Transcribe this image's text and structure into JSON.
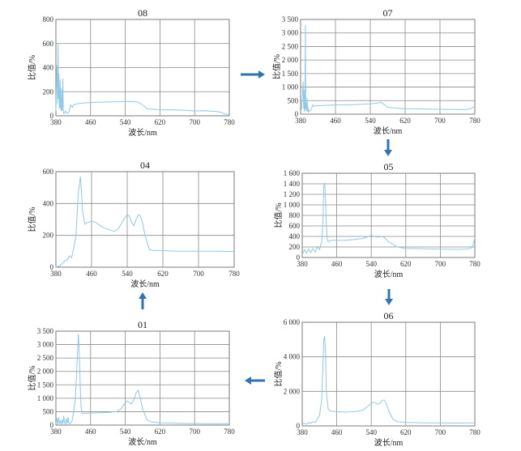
{
  "figure": {
    "xlabel": "波长/nm",
    "ylabel": "比值/%"
  },
  "chart_data": [
    {
      "id": "08",
      "type": "line",
      "title": "08",
      "xlabel": "波长/nm",
      "ylabel": "比值/%",
      "xlim": [
        380,
        780
      ],
      "ylim": [
        0,
        800
      ],
      "xticks": [
        380,
        460,
        540,
        620,
        700,
        780
      ],
      "xtick_labels": [
        "380",
        "460",
        "540",
        "620",
        "700",
        "780"
      ],
      "yticks": [
        0,
        200,
        400,
        600,
        800
      ],
      "ytick_labels": [
        "0",
        "200",
        "400",
        "600",
        "800"
      ],
      "grid": true,
      "series": [
        {
          "color": "#8fc9e8",
          "x": [
            380,
            382,
            384,
            385,
            386,
            387,
            388,
            389,
            390,
            391,
            392,
            393,
            394,
            395,
            396,
            397,
            398,
            400,
            402,
            404,
            406,
            408,
            410,
            412,
            414,
            416,
            418,
            420,
            430,
            440,
            460,
            500,
            540,
            560,
            570,
            580,
            590,
            600,
            620,
            650,
            680,
            700,
            720,
            740,
            750,
            760,
            770,
            780
          ],
          "y": [
            40,
            420,
            100,
            600,
            140,
            350,
            60,
            80,
            300,
            60,
            40,
            230,
            40,
            70,
            310,
            70,
            20,
            20,
            40,
            30,
            20,
            20,
            30,
            60,
            90,
            80,
            70,
            90,
            100,
            105,
            110,
            115,
            120,
            118,
            112,
            90,
            60,
            55,
            50,
            50,
            45,
            40,
            42,
            38,
            35,
            30,
            15,
            10
          ]
        }
      ]
    },
    {
      "id": "07",
      "type": "line",
      "title": "07",
      "xlabel": "波长/nm",
      "ylabel": "比值/%",
      "xlim": [
        380,
        780
      ],
      "ylim": [
        0,
        3500
      ],
      "xticks": [
        380,
        460,
        540,
        620,
        700,
        780
      ],
      "xtick_labels": [
        "380",
        "460",
        "540",
        "620",
        "700",
        "780"
      ],
      "yticks": [
        0,
        500,
        1000,
        1500,
        2000,
        2500,
        3000,
        3500
      ],
      "ytick_labels": [
        "0",
        "500",
        "1 000",
        "1 500",
        "2 000",
        "2 500",
        "3 000",
        "3 500"
      ],
      "grid": true,
      "series": [
        {
          "color": "#8fc9e8",
          "x": [
            380,
            382,
            384,
            386,
            387,
            388,
            389,
            390,
            391,
            392,
            393,
            394,
            395,
            396,
            397,
            398,
            400,
            402,
            404,
            406,
            408,
            410,
            412,
            414,
            416,
            420,
            430,
            440,
            460,
            500,
            540,
            560,
            565,
            570,
            580,
            600,
            620,
            660,
            700,
            740,
            760,
            770,
            780
          ],
          "y": [
            100,
            200,
            600,
            1200,
            200,
            900,
            100,
            150,
            3300,
            200,
            400,
            120,
            600,
            100,
            250,
            80,
            120,
            150,
            180,
            250,
            350,
            300,
            280,
            300,
            320,
            310,
            320,
            330,
            340,
            350,
            380,
            420,
            430,
            380,
            250,
            220,
            200,
            190,
            180,
            170,
            175,
            200,
            280
          ]
        }
      ]
    },
    {
      "id": "04",
      "type": "line",
      "title": "04",
      "xlabel": "波长/nm",
      "ylabel": "比值/%",
      "xlim": [
        380,
        780
      ],
      "ylim": [
        0,
        600
      ],
      "xticks": [
        380,
        460,
        540,
        620,
        700,
        780
      ],
      "xtick_labels": [
        "380",
        "460",
        "540",
        "620",
        "700",
        "780"
      ],
      "yticks": [
        0,
        200,
        400,
        600
      ],
      "ytick_labels": [
        "0",
        "200",
        "400",
        "600"
      ],
      "grid": true,
      "series": [
        {
          "color": "#8fc9e8",
          "x": [
            380,
            390,
            400,
            405,
            410,
            415,
            420,
            425,
            430,
            435,
            440,
            445,
            450,
            460,
            470,
            480,
            490,
            500,
            510,
            520,
            530,
            540,
            545,
            550,
            555,
            560,
            565,
            570,
            575,
            580,
            590,
            600,
            620,
            650,
            700,
            750,
            780
          ],
          "y": [
            0,
            10,
            40,
            45,
            70,
            60,
            120,
            200,
            460,
            570,
            350,
            270,
            280,
            290,
            280,
            260,
            245,
            235,
            225,
            240,
            290,
            330,
            320,
            280,
            260,
            300,
            330,
            320,
            270,
            200,
            110,
            105,
            105,
            100,
            100,
            100,
            98
          ]
        }
      ]
    },
    {
      "id": "05",
      "type": "line",
      "title": "05",
      "xlabel": "波长/nm",
      "ylabel": "比值/%",
      "xlim": [
        380,
        780
      ],
      "ylim": [
        0,
        1600
      ],
      "xticks": [
        380,
        460,
        540,
        620,
        700,
        780
      ],
      "xtick_labels": [
        "380",
        "460",
        "540",
        "620",
        "700",
        "780"
      ],
      "yticks": [
        0,
        200,
        400,
        600,
        800,
        1000,
        1200,
        1400,
        1600
      ],
      "ytick_labels": [
        "0",
        "200",
        "400",
        "600",
        "800",
        "1 000",
        "1 200",
        "1 400",
        "1 600"
      ],
      "grid": true,
      "series": [
        {
          "color": "#8fc9e8",
          "x": [
            380,
            385,
            390,
            395,
            400,
            405,
            410,
            415,
            420,
            425,
            428,
            430,
            432,
            434,
            436,
            438,
            440,
            445,
            450,
            460,
            480,
            500,
            520,
            540,
            550,
            560,
            565,
            570,
            580,
            600,
            620,
            660,
            700,
            740,
            760,
            770,
            775,
            780
          ],
          "y": [
            50,
            150,
            80,
            160,
            90,
            170,
            100,
            200,
            150,
            300,
            700,
            1350,
            1420,
            1100,
            600,
            350,
            300,
            320,
            330,
            325,
            330,
            340,
            360,
            420,
            390,
            390,
            400,
            380,
            300,
            200,
            170,
            165,
            160,
            155,
            160,
            170,
            200,
            380
          ]
        }
      ]
    },
    {
      "id": "01",
      "type": "line",
      "title": "01",
      "xlabel": "波长/nm",
      "ylabel": "比值/%",
      "xlim": [
        380,
        780
      ],
      "ylim": [
        0,
        3500
      ],
      "xticks": [
        380,
        460,
        540,
        620,
        700,
        780
      ],
      "xtick_labels": [
        "380",
        "460",
        "540",
        "620",
        "700",
        "780"
      ],
      "yticks": [
        0,
        500,
        1000,
        1500,
        2000,
        2500,
        3000,
        3500
      ],
      "ytick_labels": [
        "0",
        "500",
        "1 000",
        "1 500",
        "2 000",
        "2 500",
        "3 000",
        "3 500"
      ],
      "grid": true,
      "series": [
        {
          "color": "#8fc9e8",
          "x": [
            380,
            382,
            384,
            386,
            388,
            390,
            392,
            394,
            396,
            398,
            400,
            402,
            404,
            406,
            408,
            410,
            412,
            414,
            416,
            418,
            420,
            425,
            430,
            432,
            434,
            436,
            438,
            440,
            445,
            450,
            460,
            480,
            500,
            520,
            530,
            540,
            545,
            550,
            555,
            560,
            565,
            570,
            575,
            580,
            590,
            600,
            620,
            660,
            700,
            740,
            760,
            780
          ],
          "y": [
            50,
            250,
            20,
            300,
            50,
            150,
            30,
            200,
            40,
            350,
            80,
            40,
            250,
            50,
            300,
            60,
            50,
            80,
            120,
            200,
            400,
            1000,
            2800,
            3400,
            2600,
            1500,
            700,
            450,
            440,
            440,
            450,
            460,
            470,
            500,
            600,
            850,
            900,
            820,
            800,
            950,
            1200,
            1300,
            1000,
            600,
            200,
            120,
            80,
            70,
            60,
            50,
            50,
            50
          ]
        }
      ]
    },
    {
      "id": "06",
      "type": "line",
      "title": "06",
      "xlabel": "波长/nm",
      "ylabel": "比值/%",
      "xlim": [
        380,
        780
      ],
      "ylim": [
        0,
        6000
      ],
      "xticks": [
        380,
        460,
        540,
        620,
        700,
        780
      ],
      "xtick_labels": [
        "380",
        "460",
        "540",
        "620",
        "700",
        "780"
      ],
      "yticks": [
        0,
        2000,
        4000,
        6000
      ],
      "ytick_labels": [
        "0",
        "2 000",
        "4 000",
        "6 000"
      ],
      "grid": true,
      "series": [
        {
          "color": "#8fc9e8",
          "x": [
            380,
            385,
            390,
            395,
            400,
            405,
            410,
            415,
            420,
            425,
            428,
            430,
            432,
            434,
            436,
            440,
            445,
            450,
            460,
            480,
            500,
            520,
            530,
            540,
            545,
            550,
            555,
            560,
            565,
            570,
            575,
            580,
            590,
            600,
            620,
            660,
            700,
            740,
            760,
            780
          ],
          "y": [
            80,
            150,
            100,
            200,
            150,
            250,
            200,
            400,
            600,
            1500,
            3500,
            5000,
            5200,
            4200,
            2000,
            1000,
            850,
            850,
            820,
            800,
            820,
            900,
            1100,
            1300,
            1380,
            1350,
            1250,
            1300,
            1480,
            1500,
            1300,
            900,
            400,
            250,
            200,
            180,
            170,
            165,
            170,
            180
          ]
        }
      ]
    }
  ],
  "flow_arrows": [
    {
      "from": "08",
      "to": "07",
      "direction": "right"
    },
    {
      "from": "07",
      "to": "05",
      "direction": "down"
    },
    {
      "from": "05",
      "to": "06",
      "direction": "down"
    },
    {
      "from": "06",
      "to": "01",
      "direction": "left"
    },
    {
      "from": "01",
      "to": "04",
      "direction": "up"
    }
  ]
}
